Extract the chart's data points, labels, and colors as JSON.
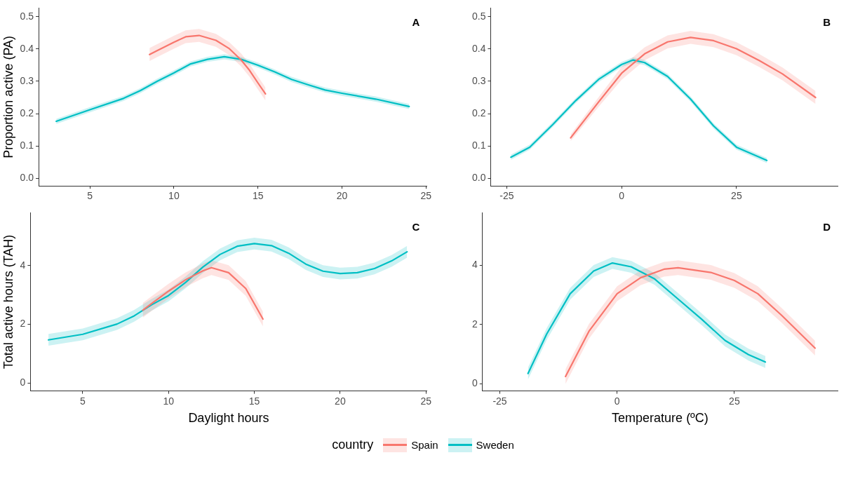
{
  "chart_data": [
    {
      "type": "line",
      "title": "A",
      "ylabel": "Proportion active (PA)",
      "legend_title": "country",
      "legend": "bottom",
      "xlim": [
        1.95,
        25.05
      ],
      "xticks": [
        5,
        10,
        15,
        20,
        25
      ],
      "ylim": [
        -0.024,
        0.527
      ],
      "yticks": [
        {
          "value": 0,
          "label": "0.0"
        },
        0.1,
        0.2,
        0.3,
        0.4,
        0.5
      ],
      "grid": false,
      "marker": "none",
      "line_style": "solid",
      "series": [
        {
          "name": "Spain",
          "color": "#f8766d",
          "x": [
            8.55,
            9,
            10,
            10.7,
            11.5,
            12.5,
            13.3,
            14,
            14.5,
            15,
            15.45
          ],
          "values": [
            0.383,
            0.395,
            0.421,
            0.438,
            0.442,
            0.427,
            0.401,
            0.366,
            0.334,
            0.295,
            0.261
          ],
          "lower": [
            0.363,
            0.375,
            0.401,
            0.418,
            0.422,
            0.407,
            0.381,
            0.346,
            0.314,
            0.275,
            0.241
          ],
          "upper": [
            0.403,
            0.415,
            0.441,
            0.458,
            0.462,
            0.447,
            0.421,
            0.386,
            0.354,
            0.315,
            0.281
          ]
        },
        {
          "name": "Sweden",
          "color": "#00bfc4",
          "x": [
            3,
            5,
            7,
            8,
            9,
            10,
            11,
            12,
            13,
            14,
            15,
            16,
            17,
            18,
            19,
            20,
            22,
            24
          ],
          "values": [
            0.176,
            0.212,
            0.247,
            0.271,
            0.3,
            0.326,
            0.354,
            0.368,
            0.376,
            0.368,
            0.35,
            0.329,
            0.306,
            0.289,
            0.273,
            0.263,
            0.245,
            0.222
          ],
          "lower": [
            0.168,
            0.204,
            0.239,
            0.263,
            0.292,
            0.318,
            0.346,
            0.36,
            0.368,
            0.36,
            0.342,
            0.321,
            0.298,
            0.281,
            0.265,
            0.255,
            0.237,
            0.214
          ],
          "upper": [
            0.184,
            0.22,
            0.255,
            0.279,
            0.308,
            0.334,
            0.362,
            0.376,
            0.384,
            0.376,
            0.358,
            0.337,
            0.314,
            0.297,
            0.281,
            0.271,
            0.253,
            0.23
          ]
        }
      ]
    },
    {
      "type": "line",
      "title": "B",
      "xlim": [
        -28.5,
        47
      ],
      "xticks": [
        -25,
        0,
        25
      ],
      "ylim": [
        -0.024,
        0.527
      ],
      "yticks": [
        {
          "value": 0,
          "label": "0.0"
        },
        0.1,
        0.2,
        0.3,
        0.4,
        0.5
      ],
      "grid": false,
      "marker": "none",
      "line_style": "solid",
      "series": [
        {
          "color": "#f8766d",
          "x": [
            -11.1,
            -5,
            0,
            5,
            10,
            15,
            20,
            25,
            30,
            35,
            42.2
          ],
          "values": [
            0.125,
            0.236,
            0.325,
            0.385,
            0.422,
            0.436,
            0.426,
            0.401,
            0.364,
            0.323,
            0.25
          ],
          "lower": [
            0.115,
            0.221,
            0.305,
            0.365,
            0.402,
            0.416,
            0.406,
            0.381,
            0.344,
            0.303,
            0.23
          ],
          "upper": [
            0.135,
            0.251,
            0.345,
            0.405,
            0.442,
            0.456,
            0.446,
            0.421,
            0.384,
            0.343,
            0.27
          ]
        },
        {
          "color": "#00bfc4",
          "x": [
            -24.1,
            -20,
            -15,
            -10,
            -5,
            0,
            2.5,
            5,
            10,
            15,
            20,
            25,
            31.6
          ],
          "values": [
            0.065,
            0.096,
            0.166,
            0.24,
            0.306,
            0.352,
            0.366,
            0.358,
            0.315,
            0.245,
            0.162,
            0.096,
            0.055
          ],
          "lower": [
            0.057,
            0.088,
            0.158,
            0.232,
            0.298,
            0.344,
            0.358,
            0.35,
            0.307,
            0.237,
            0.154,
            0.088,
            0.047
          ],
          "upper": [
            0.073,
            0.104,
            0.174,
            0.248,
            0.314,
            0.36,
            0.374,
            0.366,
            0.323,
            0.253,
            0.17,
            0.104,
            0.063
          ]
        }
      ]
    },
    {
      "type": "line",
      "title": "C",
      "xlabel": "Daylight hours",
      "ylabel": "Total active hours (TAH)",
      "xlim": [
        1.95,
        25.05
      ],
      "xticks": [
        5,
        10,
        15,
        20,
        25
      ],
      "ylim": [
        -0.27,
        5.8
      ],
      "yticks": [
        0,
        2,
        4
      ],
      "grid": false,
      "marker": "none",
      "line_style": "solid",
      "series": [
        {
          "color": "#f8766d",
          "x": [
            8.5,
            9,
            10,
            11,
            12,
            12.5,
            13.5,
            14.5,
            15.5
          ],
          "values": [
            2.48,
            2.7,
            3.13,
            3.52,
            3.82,
            3.93,
            3.76,
            3.22,
            2.18
          ],
          "lower": [
            2.23,
            2.45,
            2.88,
            3.27,
            3.57,
            3.68,
            3.51,
            2.97,
            1.93
          ],
          "upper": [
            2.73,
            2.95,
            3.38,
            3.77,
            4.07,
            4.18,
            4.01,
            3.47,
            2.43
          ]
        },
        {
          "color": "#00bfc4",
          "x": [
            3,
            5,
            7,
            8,
            9,
            10,
            11,
            12,
            13,
            14,
            15,
            16,
            17,
            18,
            19,
            20,
            21,
            22,
            23,
            23.9
          ],
          "values": [
            1.47,
            1.66,
            2.01,
            2.29,
            2.66,
            2.98,
            3.43,
            3.95,
            4.38,
            4.66,
            4.75,
            4.68,
            4.42,
            4.05,
            3.81,
            3.73,
            3.76,
            3.9,
            4.16,
            4.47
          ],
          "lower": [
            1.27,
            1.46,
            1.81,
            2.09,
            2.46,
            2.78,
            3.23,
            3.75,
            4.18,
            4.46,
            4.55,
            4.48,
            4.22,
            3.85,
            3.61,
            3.53,
            3.56,
            3.7,
            3.96,
            4.27
          ],
          "upper": [
            1.67,
            1.86,
            2.21,
            2.49,
            2.86,
            3.18,
            3.63,
            4.15,
            4.58,
            4.86,
            4.95,
            4.88,
            4.62,
            4.25,
            4.01,
            3.93,
            3.96,
            4.1,
            4.36,
            4.67
          ]
        }
      ]
    },
    {
      "type": "line",
      "title": "D",
      "xlabel": "Temperature (ºC)",
      "xlim": [
        -28.7,
        47
      ],
      "xticks": [
        -25,
        0,
        25
      ],
      "ylim": [
        -0.25,
        5.78
      ],
      "yticks": [
        0,
        2,
        4
      ],
      "grid": false,
      "marker": "none",
      "line_style": "solid",
      "series": [
        {
          "color": "#f8766d",
          "x": [
            -11,
            -6,
            0,
            5,
            10,
            13,
            20,
            25,
            30,
            35,
            42.2
          ],
          "values": [
            0.24,
            1.77,
            3.04,
            3.58,
            3.87,
            3.92,
            3.76,
            3.49,
            3.04,
            2.32,
            1.2
          ],
          "lower": [
            -0.01,
            1.52,
            2.79,
            3.33,
            3.62,
            3.67,
            3.51,
            3.24,
            2.79,
            2.07,
            0.95
          ],
          "upper": [
            0.49,
            2.02,
            3.29,
            3.83,
            4.12,
            4.17,
            4.01,
            3.74,
            3.29,
            2.57,
            1.45
          ]
        },
        {
          "color": "#00bfc4",
          "x": [
            -19,
            -15,
            -10,
            -5,
            -1,
            3,
            8,
            13,
            18,
            23,
            28,
            31.6
          ],
          "values": [
            0.34,
            1.68,
            3.04,
            3.81,
            4.08,
            3.95,
            3.54,
            2.86,
            2.18,
            1.46,
            0.98,
            0.73
          ],
          "lower": [
            0.14,
            1.48,
            2.84,
            3.61,
            3.88,
            3.75,
            3.34,
            2.66,
            1.98,
            1.26,
            0.78,
            0.53
          ],
          "upper": [
            0.54,
            1.88,
            3.24,
            4.01,
            4.28,
            4.15,
            3.74,
            3.06,
            2.38,
            1.66,
            1.18,
            0.93
          ]
        }
      ]
    }
  ]
}
